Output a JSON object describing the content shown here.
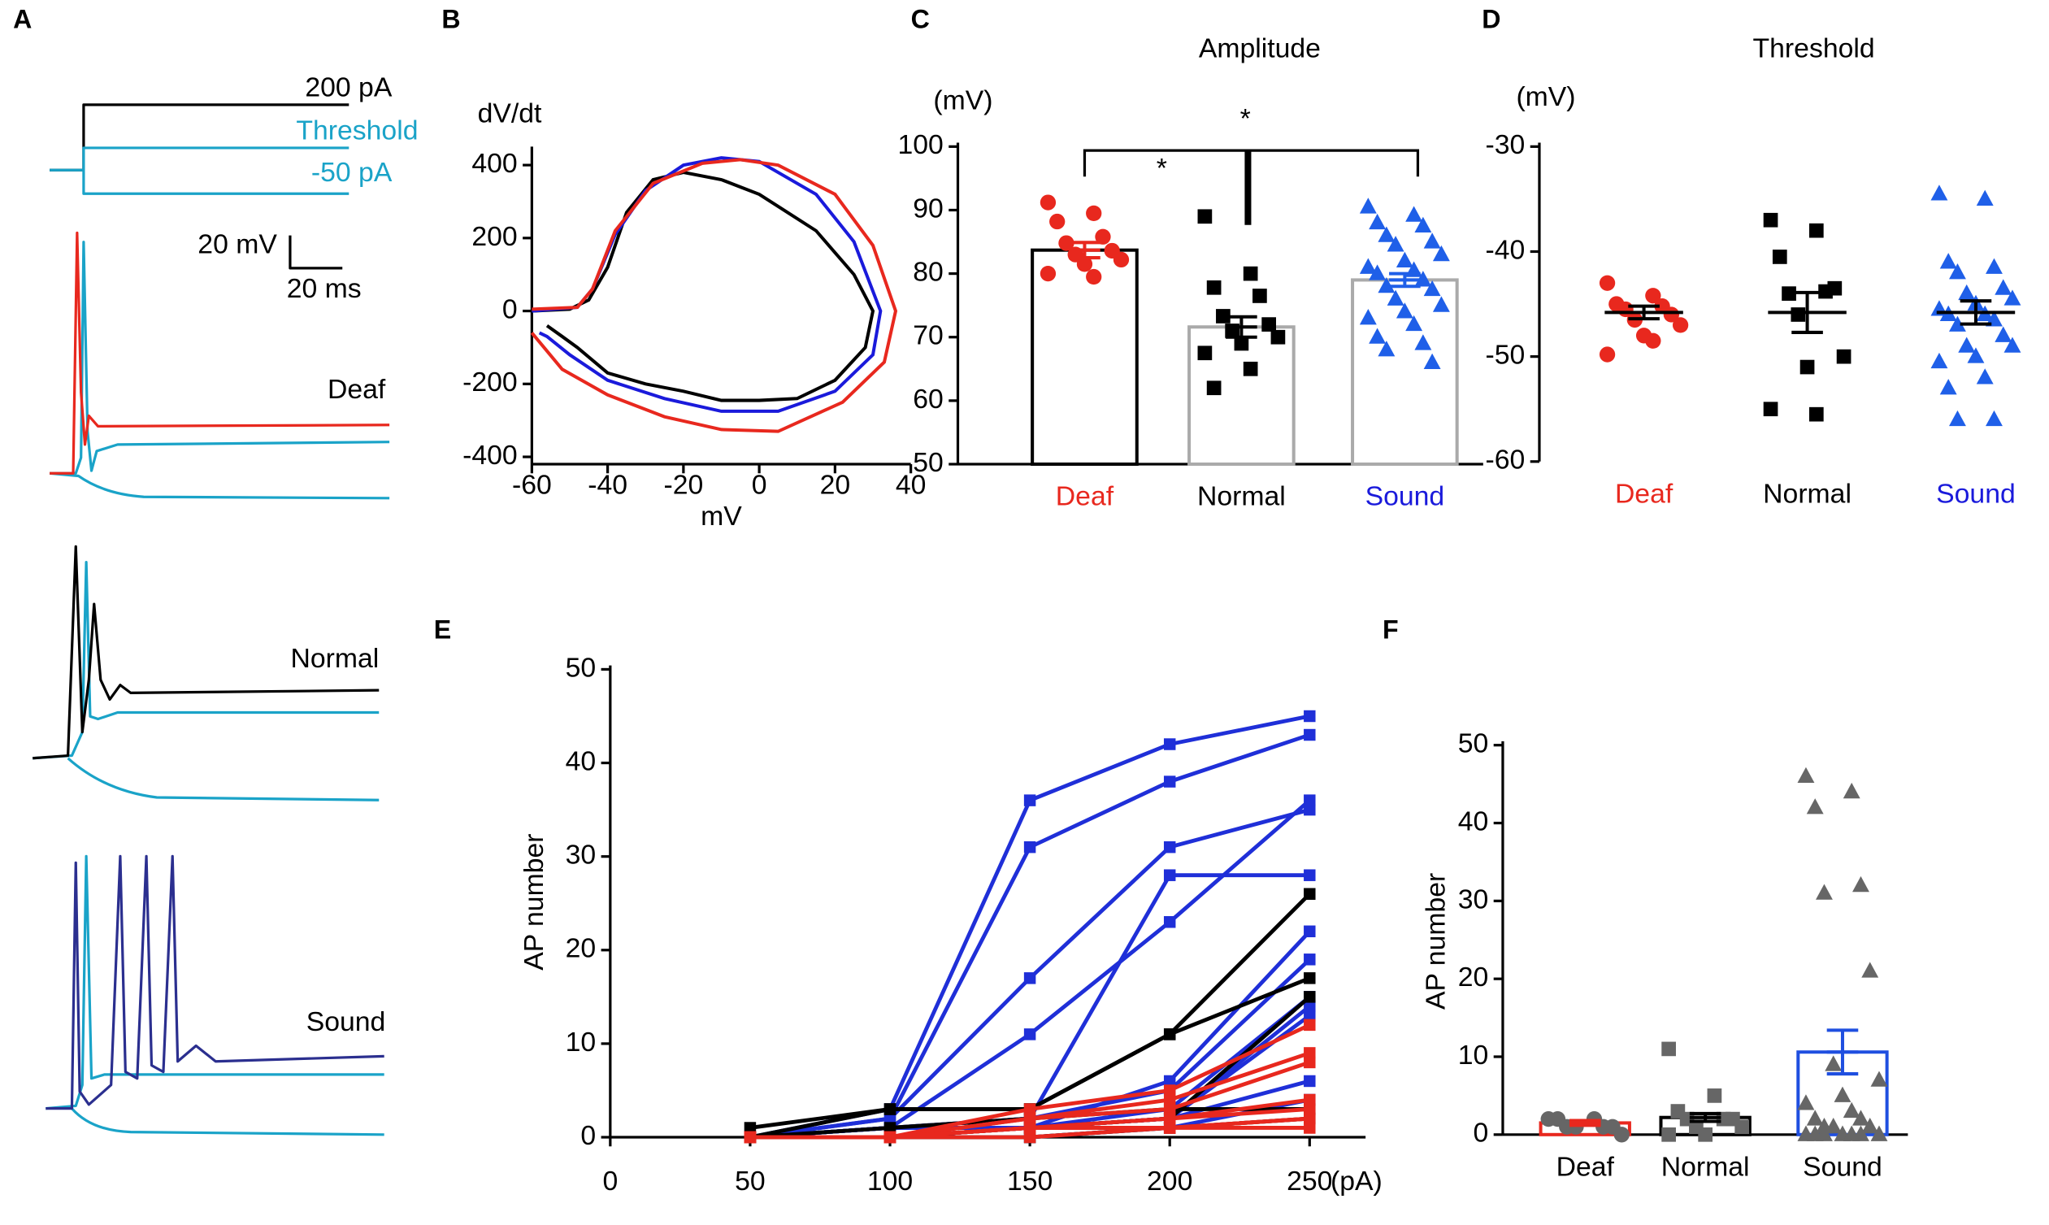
{
  "panel_labels": [
    "A",
    "B",
    "C",
    "D",
    "E",
    "F"
  ],
  "panel_a": {
    "command_labels": [
      "200 pA",
      "Threshold",
      "-50 pA"
    ],
    "scale_labels": [
      "20 mV",
      "20 ms"
    ],
    "groups": [
      "Deaf",
      "Normal",
      "Sound"
    ]
  },
  "chart_data": [
    {
      "type": "line",
      "ylabel": "dV/dt",
      "xlabel": "mV",
      "xlim": [
        -60,
        40
      ],
      "xticks": [
        -60,
        -40,
        -20,
        0,
        20,
        40
      ],
      "ylim": [
        -420,
        440
      ],
      "yticks": [
        -400,
        -200,
        0,
        200,
        400
      ],
      "series": [
        {
          "color": "#000000",
          "x": [
            -60,
            -50,
            -45,
            -40,
            -35,
            -28,
            -20,
            -10,
            0,
            15,
            25,
            30,
            28,
            20,
            10,
            0,
            -10,
            -20,
            -30,
            -40,
            -48,
            -52,
            -56
          ],
          "values": [
            0,
            5,
            30,
            120,
            270,
            360,
            380,
            360,
            320,
            220,
            100,
            0,
            -100,
            -190,
            -240,
            -245,
            -245,
            -220,
            -200,
            -170,
            -100,
            -70,
            -40
          ]
        },
        {
          "color": "#1a1adb",
          "x": [
            -60,
            -48,
            -44,
            -38,
            -30,
            -20,
            -10,
            0,
            15,
            25,
            32,
            30,
            20,
            5,
            -10,
            -25,
            -40,
            -50,
            -56,
            -58
          ],
          "values": [
            0,
            10,
            60,
            210,
            330,
            400,
            420,
            410,
            320,
            190,
            0,
            -120,
            -220,
            -275,
            -275,
            -240,
            -190,
            -120,
            -70,
            -60
          ]
        },
        {
          "color": "#e8281e",
          "x": [
            -60,
            -48,
            -44,
            -38,
            -28,
            -15,
            -5,
            5,
            20,
            30,
            36,
            33,
            22,
            5,
            -10,
            -25,
            -40,
            -52,
            -60
          ],
          "values": [
            5,
            10,
            60,
            220,
            350,
            405,
            415,
            400,
            320,
            180,
            0,
            -140,
            -250,
            -330,
            -325,
            -290,
            -230,
            -160,
            -60
          ]
        }
      ]
    },
    {
      "type": "bar",
      "title": "Amplitude",
      "ylabel": "(mV)",
      "annotations": [
        "*",
        "*"
      ],
      "ylim": [
        50,
        100
      ],
      "yticks": [
        50,
        60,
        70,
        80,
        90,
        100
      ],
      "categories": [
        "Deaf",
        "Normal",
        "Sound"
      ],
      "values": [
        83.7,
        71.6,
        79.0
      ],
      "errors": [
        1.2,
        1.6,
        1.0
      ],
      "label_colors": [
        "#e8281e",
        "#000000",
        "#1a1adb"
      ],
      "bar_colors": [
        "#000000",
        "#aaaaaa",
        "#aaaaaa"
      ],
      "mean_colors": [
        "#e8281e",
        "#000000",
        "#1f5fe8"
      ],
      "point_colors": [
        "#e8281e",
        "#000000",
        "#1f5fe8"
      ],
      "markers": [
        "circle",
        "square",
        "triangle"
      ],
      "points": [
        [
          91.2,
          89.5,
          88.2,
          85.8,
          84.8,
          83.6,
          83,
          82.2,
          81.5,
          80,
          79.5
        ],
        [
          89,
          80,
          77.8,
          76.5,
          73.3,
          72,
          71,
          70,
          69,
          67.5,
          65,
          62
        ],
        [
          90.5,
          89.2,
          88,
          87.5,
          86,
          85,
          84.5,
          83,
          82,
          81,
          80.5,
          80,
          79,
          78,
          77.5,
          76,
          75,
          74,
          73,
          72,
          70,
          69,
          68,
          66
        ]
      ]
    },
    {
      "type": "scatter",
      "title": "Threshold",
      "ylabel": "(mV)",
      "ylim": [
        -60,
        -30
      ],
      "yticks": [
        -60,
        -50,
        -40,
        -30
      ],
      "categories": [
        "Deaf",
        "Normal",
        "Sound"
      ],
      "values": [
        -45.8,
        -45.8,
        -45.8
      ],
      "errors": [
        0.6,
        1.9,
        1.1
      ],
      "label_colors": [
        "#e8281e",
        "#000000",
        "#1a1adb"
      ],
      "mean_colors": [
        "#000000",
        "#000000",
        "#000000"
      ],
      "point_colors": [
        "#e8281e",
        "#000000",
        "#1f5fe8"
      ],
      "markers": [
        "circle",
        "square",
        "triangle"
      ],
      "points": [
        [
          -43,
          -44.2,
          -45,
          -45.2,
          -45.5,
          -46,
          -46.5,
          -47,
          -48,
          -49.8,
          -48.5
        ],
        [
          -37,
          -38,
          -40.5,
          -43.8,
          -44,
          -43.5,
          -46,
          -50,
          -51,
          -55,
          -55.5
        ],
        [
          -34.5,
          -35,
          -41,
          -41.5,
          -42,
          -43.5,
          -44,
          -44.5,
          -45,
          -45.5,
          -46,
          -46,
          -46.5,
          -47,
          -48,
          -49,
          -49,
          -50,
          -50.5,
          -52,
          -53,
          -56,
          -56
        ]
      ]
    },
    {
      "type": "line",
      "ylabel": "AP number",
      "xlabel": "(pA)",
      "xlim": [
        0,
        270
      ],
      "xticks": [
        0,
        50,
        100,
        150,
        200,
        250
      ],
      "ylim": [
        0,
        50
      ],
      "yticks": [
        0,
        10,
        20,
        30,
        40,
        50
      ],
      "x": [
        50,
        100,
        150,
        200,
        250
      ],
      "series": [
        {
          "color": "#1f2fd8",
          "values": [
            0,
            3,
            36,
            42,
            45
          ]
        },
        {
          "color": "#1f2fd8",
          "values": [
            0,
            2,
            31,
            38,
            43
          ]
        },
        {
          "color": "#1f2fd8",
          "values": [
            0,
            2,
            17,
            31,
            35
          ]
        },
        {
          "color": "#1f2fd8",
          "values": [
            0,
            1,
            11,
            23,
            36
          ]
        },
        {
          "color": "#1f2fd8",
          "values": [
            0,
            1,
            2,
            28,
            28
          ]
        },
        {
          "color": "#1f2fd8",
          "values": [
            0,
            1,
            1,
            6,
            22
          ]
        },
        {
          "color": "#1f2fd8",
          "values": [
            0,
            1,
            2,
            5,
            19
          ]
        },
        {
          "color": "#1f2fd8",
          "values": [
            0,
            1,
            1,
            3,
            15
          ]
        },
        {
          "color": "#1f2fd8",
          "values": [
            0,
            1,
            1,
            2,
            13
          ]
        },
        {
          "color": "#1f2fd8",
          "values": [
            0,
            0,
            1,
            2,
            6
          ]
        },
        {
          "color": "#1f2fd8",
          "values": [
            0,
            0,
            1,
            2,
            14
          ]
        },
        {
          "color": "#1f2fd8",
          "values": [
            0,
            0,
            0,
            1,
            4
          ]
        },
        {
          "color": "#000000",
          "values": [
            1,
            3,
            3,
            11,
            26
          ]
        },
        {
          "color": "#000000",
          "values": [
            0,
            3,
            3,
            11,
            17
          ]
        },
        {
          "color": "#000000",
          "values": [
            0,
            1,
            2,
            3,
            3
          ]
        },
        {
          "color": "#000000",
          "values": [
            0,
            0,
            0,
            1,
            2
          ]
        },
        {
          "color": "#000000",
          "values": [
            0,
            0,
            1,
            2,
            15
          ]
        },
        {
          "color": "#e8281e",
          "values": [
            0,
            0,
            3,
            5,
            12
          ]
        },
        {
          "color": "#e8281e",
          "values": [
            0,
            0,
            2,
            4,
            9
          ]
        },
        {
          "color": "#e8281e",
          "values": [
            0,
            0,
            2,
            3,
            8
          ]
        },
        {
          "color": "#e8281e",
          "values": [
            0,
            0,
            1,
            2,
            4
          ]
        },
        {
          "color": "#e8281e",
          "values": [
            0,
            0,
            1,
            1,
            2
          ]
        },
        {
          "color": "#e8281e",
          "values": [
            0,
            0,
            1,
            2,
            3
          ]
        },
        {
          "color": "#e8281e",
          "values": [
            0,
            0,
            1,
            1,
            1
          ]
        },
        {
          "color": "#e8281e",
          "values": [
            0,
            0,
            0,
            1,
            2
          ]
        }
      ]
    },
    {
      "type": "bar",
      "ylabel": "AP number",
      "ylim": [
        0,
        50
      ],
      "yticks": [
        0,
        10,
        20,
        30,
        40,
        50
      ],
      "categories": [
        "Deaf",
        "Normal",
        "Sound"
      ],
      "values": [
        1.5,
        2.2,
        10.6
      ],
      "errors": [
        0.3,
        0.5,
        2.8
      ],
      "label_colors": [
        "#000000",
        "#000000",
        "#000000"
      ],
      "bar_colors": [
        "#e8281e",
        "#000000",
        "#1f4fe0"
      ],
      "mean_colors": [
        "#e8281e",
        "#000000",
        "#1f4fe0"
      ],
      "point_colors": [
        "#666666",
        "#666666",
        "#666666"
      ],
      "markers": [
        "circle",
        "square",
        "triangle"
      ],
      "points": [
        [
          2,
          2,
          2,
          1,
          1,
          1,
          1,
          0
        ],
        [
          11,
          5,
          3,
          2,
          2,
          2,
          1,
          1,
          0,
          0
        ],
        [
          46,
          44,
          42,
          32,
          31,
          21,
          9,
          7,
          5,
          4,
          3,
          2,
          2,
          1,
          1,
          1,
          0,
          0,
          0,
          0,
          0,
          0,
          0
        ]
      ]
    }
  ]
}
